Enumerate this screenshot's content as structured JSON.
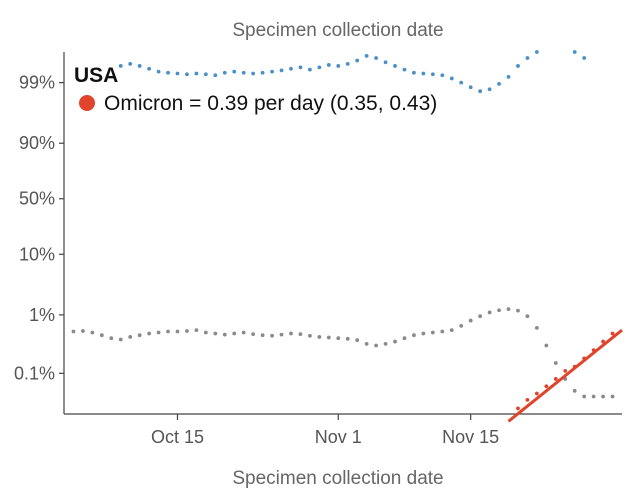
{
  "chart_data": {
    "type": "scatter",
    "title": "Specimen collection date",
    "xlabel": "Specimen collection date",
    "ylabel": "",
    "y_scale": "logit",
    "x_tick_labels": [
      "Oct 15",
      "Nov 1",
      "Nov 15"
    ],
    "x_tick_dates": [
      "2021-10-15",
      "2021-11-01",
      "2021-11-15"
    ],
    "x_range": [
      "2021-10-03",
      "2021-12-01"
    ],
    "y_ticks": [
      0.001,
      0.01,
      0.1,
      0.5,
      0.9,
      0.99
    ],
    "y_tick_labels": [
      "0.1%",
      "1%",
      "10%",
      "50%",
      "90%",
      "99%"
    ],
    "ylim": [
      0.0002,
      0.997
    ],
    "grid": false,
    "legend_position": "top-left",
    "annotation": {
      "region": "USA",
      "text": "Omicron = 0.39 per day (0.35, 0.43)",
      "color": "#e0442c"
    },
    "colors": {
      "delta": "#4a90c8",
      "other": "#8a8a8a",
      "omicron": "#e0442c"
    },
    "series": [
      {
        "color": "#4a90c8",
        "x": [
          "2021-10-09",
          "2021-10-10",
          "2021-10-11",
          "2021-10-12",
          "2021-10-13",
          "2021-10-14",
          "2021-10-15",
          "2021-10-16",
          "2021-10-17",
          "2021-10-18",
          "2021-10-19",
          "2021-10-20",
          "2021-10-21",
          "2021-10-22",
          "2021-10-23",
          "2021-10-24",
          "2021-10-25",
          "2021-10-26",
          "2021-10-27",
          "2021-10-28",
          "2021-10-29",
          "2021-10-30",
          "2021-10-31",
          "2021-11-01",
          "2021-11-02",
          "2021-11-03",
          "2021-11-04",
          "2021-11-05",
          "2021-11-06",
          "2021-11-07",
          "2021-11-08",
          "2021-11-09",
          "2021-11-10",
          "2021-11-11",
          "2021-11-12",
          "2021-11-13",
          "2021-11-14",
          "2021-11-15",
          "2021-11-16",
          "2021-11-17",
          "2021-11-18",
          "2021-11-19",
          "2021-11-20",
          "2021-11-21",
          "2021-11-22",
          "2021-11-26",
          "2021-11-27"
        ],
        "values": [
          0.9948,
          0.9952,
          0.9948,
          0.9942,
          0.9935,
          0.9932,
          0.993,
          0.9928,
          0.993,
          0.9928,
          0.9925,
          0.9932,
          0.9935,
          0.9932,
          0.993,
          0.9932,
          0.9935,
          0.9938,
          0.9942,
          0.9945,
          0.994,
          0.9945,
          0.995,
          0.9948,
          0.9952,
          0.9958,
          0.9965,
          0.9962,
          0.9955,
          0.9948,
          0.994,
          0.9932,
          0.993,
          0.9928,
          0.9925,
          0.9915,
          0.99,
          0.988,
          0.986,
          0.987,
          0.9895,
          0.992,
          0.9948,
          0.9962,
          0.997,
          0.997,
          0.9962
        ]
      },
      {
        "color": "#8a8a8a",
        "x": [
          "2021-10-04",
          "2021-10-05",
          "2021-10-06",
          "2021-10-07",
          "2021-10-08",
          "2021-10-09",
          "2021-10-10",
          "2021-10-11",
          "2021-10-12",
          "2021-10-13",
          "2021-10-14",
          "2021-10-15",
          "2021-10-16",
          "2021-10-17",
          "2021-10-18",
          "2021-10-19",
          "2021-10-20",
          "2021-10-21",
          "2021-10-22",
          "2021-10-23",
          "2021-10-24",
          "2021-10-25",
          "2021-10-26",
          "2021-10-27",
          "2021-10-28",
          "2021-10-29",
          "2021-10-30",
          "2021-10-31",
          "2021-11-01",
          "2021-11-02",
          "2021-11-03",
          "2021-11-04",
          "2021-11-05",
          "2021-11-06",
          "2021-11-07",
          "2021-11-08",
          "2021-11-09",
          "2021-11-10",
          "2021-11-11",
          "2021-11-12",
          "2021-11-13",
          "2021-11-14",
          "2021-11-15",
          "2021-11-16",
          "2021-11-17",
          "2021-11-18",
          "2021-11-19",
          "2021-11-20",
          "2021-11-21",
          "2021-11-22",
          "2021-11-23",
          "2021-11-24",
          "2021-11-25",
          "2021-11-26",
          "2021-11-27",
          "2021-11-28",
          "2021-11-29",
          "2021-11-30"
        ],
        "values": [
          0.0052,
          0.0053,
          0.005,
          0.0045,
          0.004,
          0.0038,
          0.0042,
          0.0045,
          0.0048,
          0.005,
          0.0052,
          0.0052,
          0.0053,
          0.0055,
          0.005,
          0.0048,
          0.0046,
          0.0048,
          0.005,
          0.0047,
          0.0045,
          0.0044,
          0.0046,
          0.0048,
          0.0047,
          0.0044,
          0.0042,
          0.0041,
          0.004,
          0.0039,
          0.0037,
          0.0032,
          0.003,
          0.0032,
          0.0035,
          0.004,
          0.0045,
          0.0048,
          0.005,
          0.0052,
          0.0055,
          0.0065,
          0.008,
          0.0095,
          0.011,
          0.012,
          0.0125,
          0.0118,
          0.0095,
          0.006,
          0.003,
          0.0015,
          0.0008,
          0.0005,
          0.0004,
          0.0004,
          0.0004,
          0.0004
        ]
      },
      {
        "color": "#e0442c",
        "x": [
          "2021-11-20",
          "2021-11-21",
          "2021-11-22",
          "2021-11-23",
          "2021-11-24",
          "2021-11-25",
          "2021-11-26",
          "2021-11-27",
          "2021-11-28",
          "2021-11-29",
          "2021-11-30"
        ],
        "values": [
          0.00025,
          0.00035,
          0.00045,
          0.0006,
          0.0008,
          0.0011,
          0.0013,
          0.0018,
          0.0025,
          0.0035,
          0.0048
        ]
      }
    ],
    "fit_line": {
      "color": "#e0442c",
      "x": [
        "2021-11-19",
        "2021-12-01"
      ],
      "values": [
        0.00015,
        0.0055
      ]
    }
  }
}
